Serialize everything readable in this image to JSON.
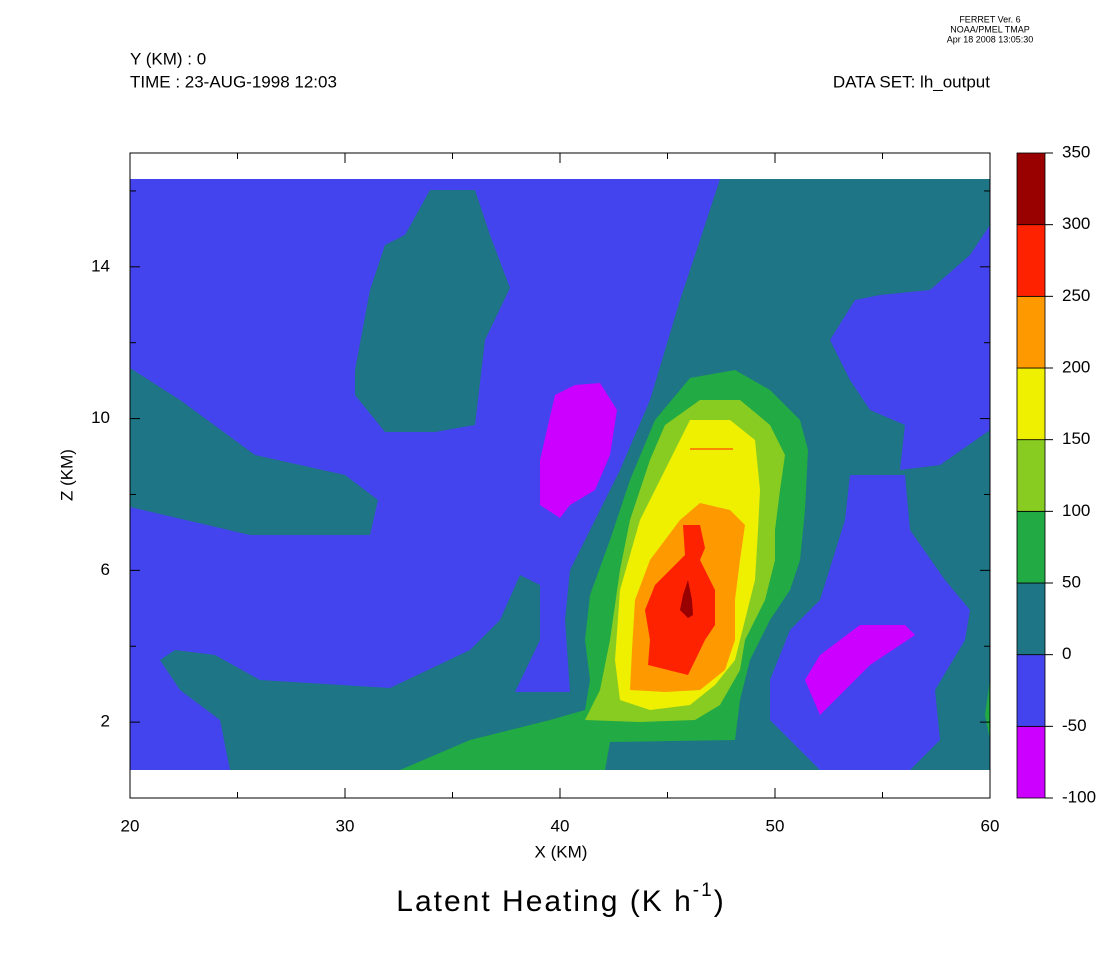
{
  "chart_data": {
    "type": "contour",
    "header": {
      "left": [
        "Y (KM) : 0",
        "TIME : 23-AUG-1998 12:03"
      ],
      "right": "DATA SET: lh_output",
      "stamp": [
        "FERRET Ver. 6",
        "NOAA/PMEL TMAP",
        "Apr 18 2008 13:05:30"
      ]
    },
    "title_parts": [
      "Latent Heating (K h",
      "-1",
      ")"
    ],
    "x_label": "X (KM)",
    "y_label": "Z (KM)",
    "xlim": [
      20,
      60
    ],
    "xticks": [
      20,
      30,
      40,
      50,
      60
    ],
    "xminor_ticks": [
      25,
      35,
      45,
      55
    ],
    "ylim": [
      0,
      17
    ],
    "yticks": [
      2,
      6,
      10,
      14
    ],
    "yminor_ticks": [
      4,
      8,
      12,
      16
    ],
    "levels": [
      -100,
      -50,
      0,
      50,
      100,
      150,
      200,
      250,
      300,
      350
    ],
    "colors": [
      "#cc00ff",
      "#4444ee",
      "#1e7585",
      "#22aa44",
      "#88cc22",
      "#eef000",
      "#ff9900",
      "#ff2200",
      "#990000"
    ]
  }
}
